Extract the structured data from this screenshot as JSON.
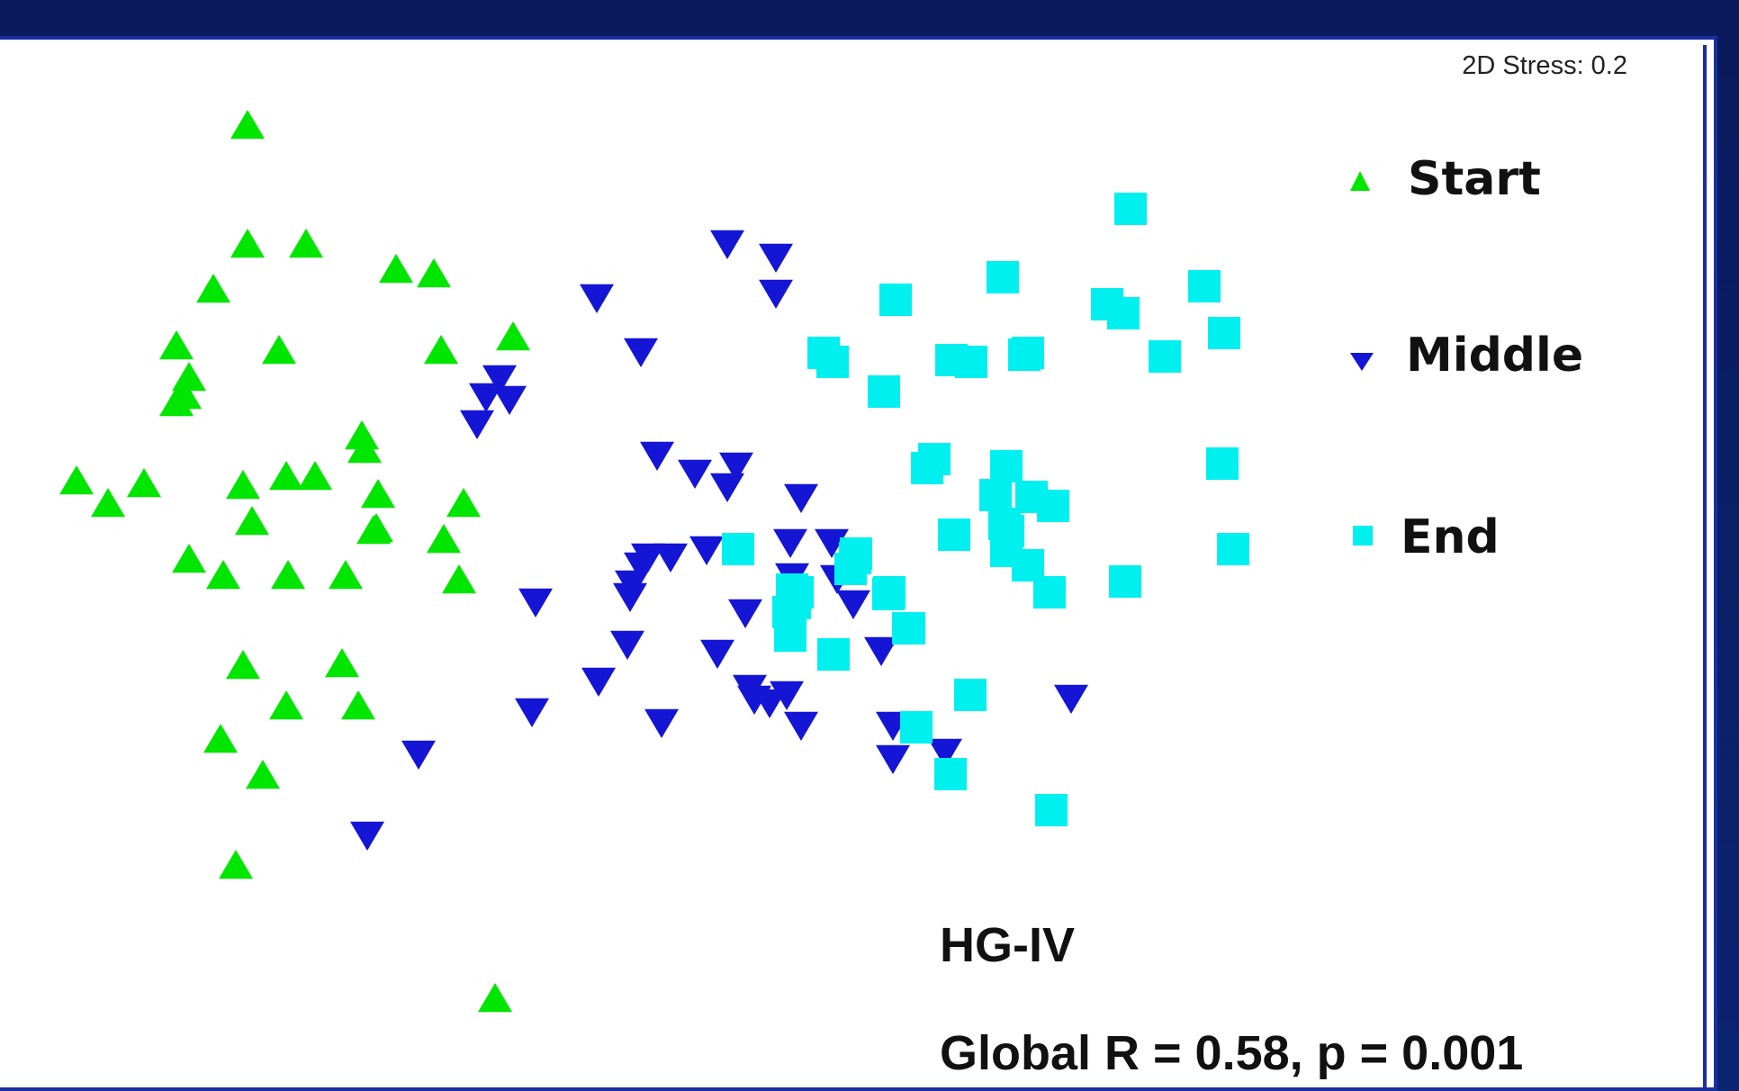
{
  "chart_data": {
    "type": "scatter",
    "stress_label": "2D Stress: 0.2",
    "annotation_title": "HG-IV",
    "annotation_stats": "Global R = 0.58, p = 0.001",
    "legend_position": "right",
    "colors": {
      "Start": "#00e600",
      "Middle": "#1515d6",
      "End": "#00f0f0"
    },
    "markers": {
      "Start": "triangle-up",
      "Middle": "triangle-down",
      "End": "square"
    },
    "series": [
      {
        "name": "Start",
        "points": [
          [
            275,
            140
          ],
          [
            275,
            272
          ],
          [
            340,
            272
          ],
          [
            237,
            322
          ],
          [
            440,
            300
          ],
          [
            482,
            305
          ],
          [
            310,
            390
          ],
          [
            196,
            385
          ],
          [
            490,
            390
          ],
          [
            570,
            375
          ],
          [
            210,
            420
          ],
          [
            205,
            440
          ],
          [
            196,
            448
          ],
          [
            402,
            485
          ],
          [
            405,
            500
          ],
          [
            160,
            538
          ],
          [
            85,
            535
          ],
          [
            120,
            560
          ],
          [
            270,
            540
          ],
          [
            318,
            530
          ],
          [
            350,
            530
          ],
          [
            420,
            550
          ],
          [
            418,
            588
          ],
          [
            280,
            580
          ],
          [
            415,
            590
          ],
          [
            515,
            560
          ],
          [
            493,
            600
          ],
          [
            210,
            622
          ],
          [
            248,
            640
          ],
          [
            320,
            640
          ],
          [
            384,
            640
          ],
          [
            510,
            645
          ],
          [
            270,
            740
          ],
          [
            380,
            738
          ],
          [
            318,
            785
          ],
          [
            398,
            785
          ],
          [
            245,
            822
          ],
          [
            292,
            862
          ],
          [
            262,
            962
          ],
          [
            550,
            1110
          ]
        ]
      },
      {
        "name": "Middle",
        "points": [
          [
            808,
            270
          ],
          [
            862,
            285
          ],
          [
            862,
            325
          ],
          [
            663,
            330
          ],
          [
            712,
            390
          ],
          [
            555,
            420
          ],
          [
            540,
            440
          ],
          [
            566,
            443
          ],
          [
            530,
            470
          ],
          [
            730,
            505
          ],
          [
            772,
            525
          ],
          [
            818,
            517
          ],
          [
            808,
            540
          ],
          [
            890,
            552
          ],
          [
            720,
            618
          ],
          [
            745,
            618
          ],
          [
            712,
            628
          ],
          [
            785,
            610
          ],
          [
            878,
            602
          ],
          [
            924,
            602
          ],
          [
            880,
            640
          ],
          [
            930,
            642
          ],
          [
            948,
            670
          ],
          [
            700,
            662
          ],
          [
            702,
            648
          ],
          [
            828,
            680
          ],
          [
            595,
            668
          ],
          [
            697,
            715
          ],
          [
            797,
            725
          ],
          [
            665,
            756
          ],
          [
            591,
            790
          ],
          [
            874,
            771
          ],
          [
            838,
            776
          ],
          [
            979,
            722
          ],
          [
            833,
            764
          ],
          [
            855,
            780
          ],
          [
            735,
            802
          ],
          [
            890,
            805
          ],
          [
            992,
            805
          ],
          [
            1190,
            775
          ],
          [
            992,
            842
          ],
          [
            1050,
            835
          ],
          [
            465,
            837
          ],
          [
            408,
            927
          ]
        ]
      },
      {
        "name": "End",
        "points": [
          [
            1256,
            232
          ],
          [
            1114,
            308
          ],
          [
            995,
            333
          ],
          [
            1230,
            338
          ],
          [
            1248,
            348
          ],
          [
            1338,
            318
          ],
          [
            1360,
            370
          ],
          [
            1142,
            392
          ],
          [
            1057,
            400
          ],
          [
            1079,
            402
          ],
          [
            1138,
            394
          ],
          [
            1294,
            396
          ],
          [
            982,
            435
          ],
          [
            915,
            392
          ],
          [
            925,
            402
          ],
          [
            1030,
            520
          ],
          [
            1038,
            510
          ],
          [
            1118,
            518
          ],
          [
            1358,
            515
          ],
          [
            1106,
            550
          ],
          [
            1146,
            552
          ],
          [
            1170,
            562
          ],
          [
            1116,
            582
          ],
          [
            1060,
            594
          ],
          [
            1120,
            590
          ],
          [
            1118,
            612
          ],
          [
            951,
            615
          ],
          [
            1370,
            610
          ],
          [
            945,
            632
          ],
          [
            820,
            610
          ],
          [
            950,
            620
          ],
          [
            1142,
            628
          ],
          [
            1250,
            646
          ],
          [
            880,
            655
          ],
          [
            886,
            658
          ],
          [
            1166,
            658
          ],
          [
            988,
            658
          ],
          [
            987,
            660
          ],
          [
            883,
            670
          ],
          [
            876,
            680
          ],
          [
            1009,
            698
          ],
          [
            878,
            706
          ],
          [
            926,
            727
          ],
          [
            1010,
            698
          ],
          [
            1078,
            772
          ],
          [
            1018,
            808
          ],
          [
            1056,
            860
          ],
          [
            1168,
            900
          ]
        ]
      }
    ]
  },
  "legend": [
    {
      "label": "Start"
    },
    {
      "label": "Middle"
    },
    {
      "label": "End"
    }
  ]
}
